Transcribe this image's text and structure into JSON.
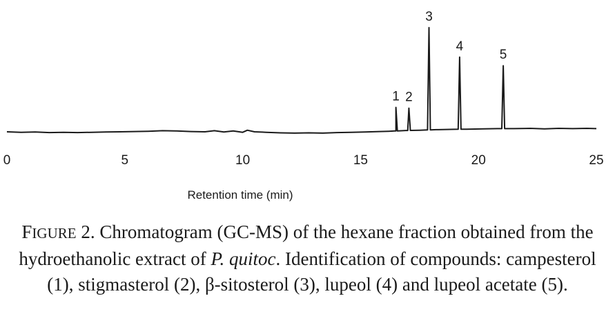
{
  "chart_data": {
    "type": "line",
    "xlabel": "Retention time (min)",
    "xlim": [
      0,
      25
    ],
    "xticks": [
      0,
      5,
      10,
      15,
      20,
      25
    ],
    "grid": false,
    "baseline": [
      [
        0,
        0.08
      ],
      [
        0.6,
        0.06
      ],
      [
        1.2,
        0.07
      ],
      [
        1.8,
        0.05
      ],
      [
        2.4,
        0.06
      ],
      [
        3.0,
        0.05
      ],
      [
        3.6,
        0.06
      ],
      [
        4.2,
        0.07
      ],
      [
        4.8,
        0.08
      ],
      [
        5.4,
        0.09
      ],
      [
        6.0,
        0.1
      ],
      [
        6.6,
        0.12
      ],
      [
        7.2,
        0.11
      ],
      [
        7.8,
        0.09
      ],
      [
        8.4,
        0.08
      ],
      [
        8.8,
        0.12
      ],
      [
        9.2,
        0.07
      ],
      [
        9.6,
        0.11
      ],
      [
        10.0,
        0.06
      ],
      [
        10.2,
        0.14
      ],
      [
        10.5,
        0.08
      ],
      [
        11.0,
        0.06
      ],
      [
        11.6,
        0.04
      ],
      [
        12.2,
        0.03
      ],
      [
        12.8,
        0.04
      ],
      [
        13.4,
        0.03
      ],
      [
        14.0,
        0.05
      ],
      [
        14.6,
        0.06
      ],
      [
        15.2,
        0.07
      ],
      [
        15.8,
        0.09
      ],
      [
        16.2,
        0.1
      ],
      [
        16.5,
        0.11
      ],
      [
        17.0,
        0.13
      ],
      [
        17.5,
        0.14
      ],
      [
        18.2,
        0.16
      ],
      [
        18.8,
        0.17
      ],
      [
        19.5,
        0.18
      ],
      [
        20.2,
        0.19
      ],
      [
        20.8,
        0.2
      ],
      [
        21.5,
        0.2
      ],
      [
        22.2,
        0.21
      ],
      [
        22.8,
        0.19
      ],
      [
        23.4,
        0.21
      ],
      [
        24.0,
        0.2
      ],
      [
        24.6,
        0.21
      ],
      [
        25.0,
        0.2
      ]
    ],
    "peaks": [
      {
        "label": "1",
        "x": 16.5,
        "height": 0.9
      },
      {
        "label": "2",
        "x": 17.05,
        "height": 0.85
      },
      {
        "label": "3",
        "x": 17.9,
        "height": 3.9
      },
      {
        "label": "4",
        "x": 19.2,
        "height": 2.75
      },
      {
        "label": "5",
        "x": 21.05,
        "height": 2.4
      }
    ],
    "line_color": "#1a1a1a"
  },
  "caption": {
    "figure_label_first": "F",
    "figure_label_rest": "IGURE",
    "figure_number": " 2.",
    "text_before_italic": " Chromatogram (GC-MS) of the hexane fraction obtained from the hydroethanolic extract of ",
    "italic": "P. quitoc",
    "text_after_italic": ". Identification of compounds: campesterol (1), stigmasterol (2), β-sitosterol (3), lupeol (4) and lupeol acetate (5)."
  }
}
